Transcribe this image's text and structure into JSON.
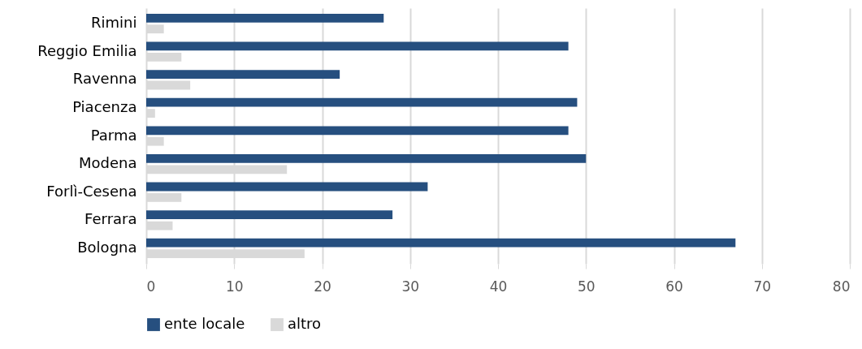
{
  "chart_data": {
    "type": "bar",
    "orientation": "horizontal",
    "categories": [
      "Rimini",
      "Reggio Emilia",
      "Ravenna",
      "Piacenza",
      "Parma",
      "Modena",
      "Forlì-Cesena",
      "Ferrara",
      "Bologna"
    ],
    "series": [
      {
        "name": "ente locale",
        "color": "#264f7f",
        "values": [
          27,
          48,
          22,
          49,
          48,
          50,
          32,
          28,
          67
        ]
      },
      {
        "name": "altro",
        "color": "#d9d9d9",
        "values": [
          2,
          4,
          5,
          1,
          2,
          16,
          4,
          3,
          18
        ]
      }
    ],
    "xlim": [
      0,
      80
    ],
    "xticks": [
      0,
      10,
      20,
      30,
      40,
      50,
      60,
      70,
      80
    ],
    "grid": "x",
    "legend": "bottom"
  }
}
